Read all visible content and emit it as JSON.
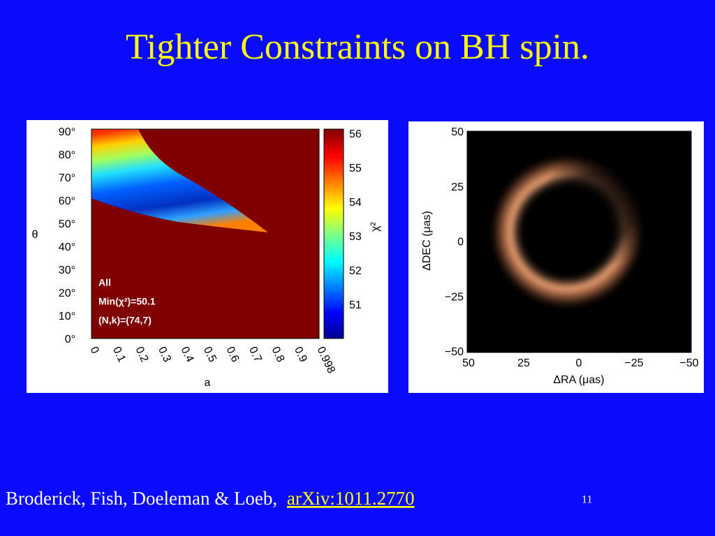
{
  "title": "Tighter Constraints on BH spin.",
  "figure_left": {
    "y_label": "θ",
    "y_ticks": [
      "90°",
      "80°",
      "70°",
      "60°",
      "50°",
      "40°",
      "30°",
      "20°",
      "10°",
      "0°"
    ],
    "x_label": "a",
    "x_ticks": [
      "0",
      "0.1",
      "0.2",
      "0.3",
      "0.4",
      "0.5",
      "0.6",
      "0.7",
      "0.8",
      "0.9",
      "0.998"
    ],
    "colorbar_label": "χ²",
    "colorbar_ticks": [
      "56",
      "55",
      "54",
      "53",
      "52",
      "51"
    ],
    "annotations": [
      "All",
      "Min(χ²)=50.1",
      "(N,k)=(74,7)"
    ]
  },
  "figure_right": {
    "y_label": "ΔDEC (μas)",
    "y_ticks": [
      "50",
      "25",
      "0",
      "−25",
      "−50"
    ],
    "x_label": "ΔRA (μas)",
    "x_ticks": [
      "50",
      "25",
      "0",
      "−25",
      "−50"
    ]
  },
  "footer": {
    "citation": "Broderick, Fish, Doeleman & Loeb,",
    "link": "arXiv:1011.2770",
    "page_number": "11"
  }
}
